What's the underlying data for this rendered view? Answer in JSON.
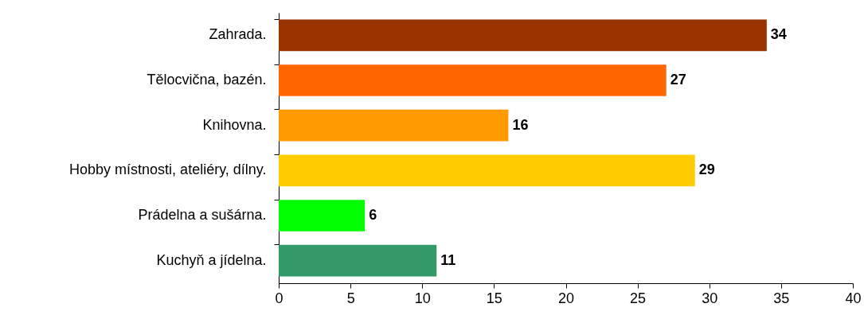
{
  "chart_data": {
    "type": "bar",
    "orientation": "horizontal",
    "categories": [
      "Zahrada.",
      "Tělocvična, bazén.",
      "Knihovna.",
      "Hobby místnosti, ateliéry, dílny.",
      "Prádelna a sušárna.",
      "Kuchyň a jídelna."
    ],
    "values": [
      34,
      27,
      16,
      29,
      6,
      11
    ],
    "colors": [
      "#993300",
      "#ff6600",
      "#ff9900",
      "#ffcc00",
      "#00ff00",
      "#339966"
    ],
    "xlim": [
      0,
      40
    ],
    "xticks": [
      0,
      5,
      10,
      15,
      20,
      25,
      30,
      35,
      40
    ],
    "data_labels": true
  }
}
